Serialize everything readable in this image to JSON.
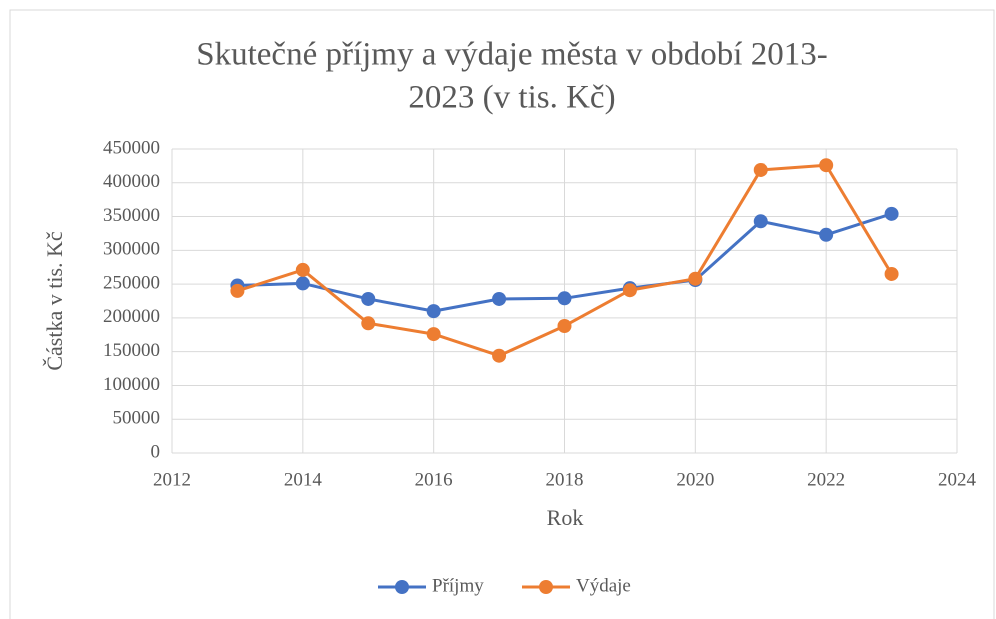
{
  "chart_data": {
    "type": "line",
    "title": [
      "Skutečné příjmy a výdaje města v období 2013-",
      "2023 (v tis. Kč)"
    ],
    "x_label": "Rok",
    "y_label": "Částka v tis. Kč",
    "x": [
      2013,
      2014,
      2015,
      2016,
      2017,
      2018,
      2019,
      2020,
      2021,
      2022,
      2023
    ],
    "series": [
      {
        "name": "Příjmy",
        "color": "#4472c4",
        "values": [
          248000,
          251000,
          228000,
          210000,
          228000,
          229000,
          244000,
          256000,
          343000,
          323000,
          354000
        ]
      },
      {
        "name": "Výdaje",
        "color": "#ed7d31",
        "values": [
          240000,
          271000,
          192000,
          176000,
          144000,
          188000,
          241000,
          258000,
          419000,
          426000,
          265000
        ]
      }
    ],
    "xlim": [
      2012,
      2024
    ],
    "xticks": [
      2012,
      2014,
      2016,
      2018,
      2020,
      2022,
      2024
    ],
    "ylim": [
      0,
      450000
    ],
    "yticks": [
      0,
      50000,
      100000,
      150000,
      200000,
      250000,
      300000,
      350000,
      400000,
      450000
    ],
    "grid": true,
    "legend": "bottom"
  }
}
